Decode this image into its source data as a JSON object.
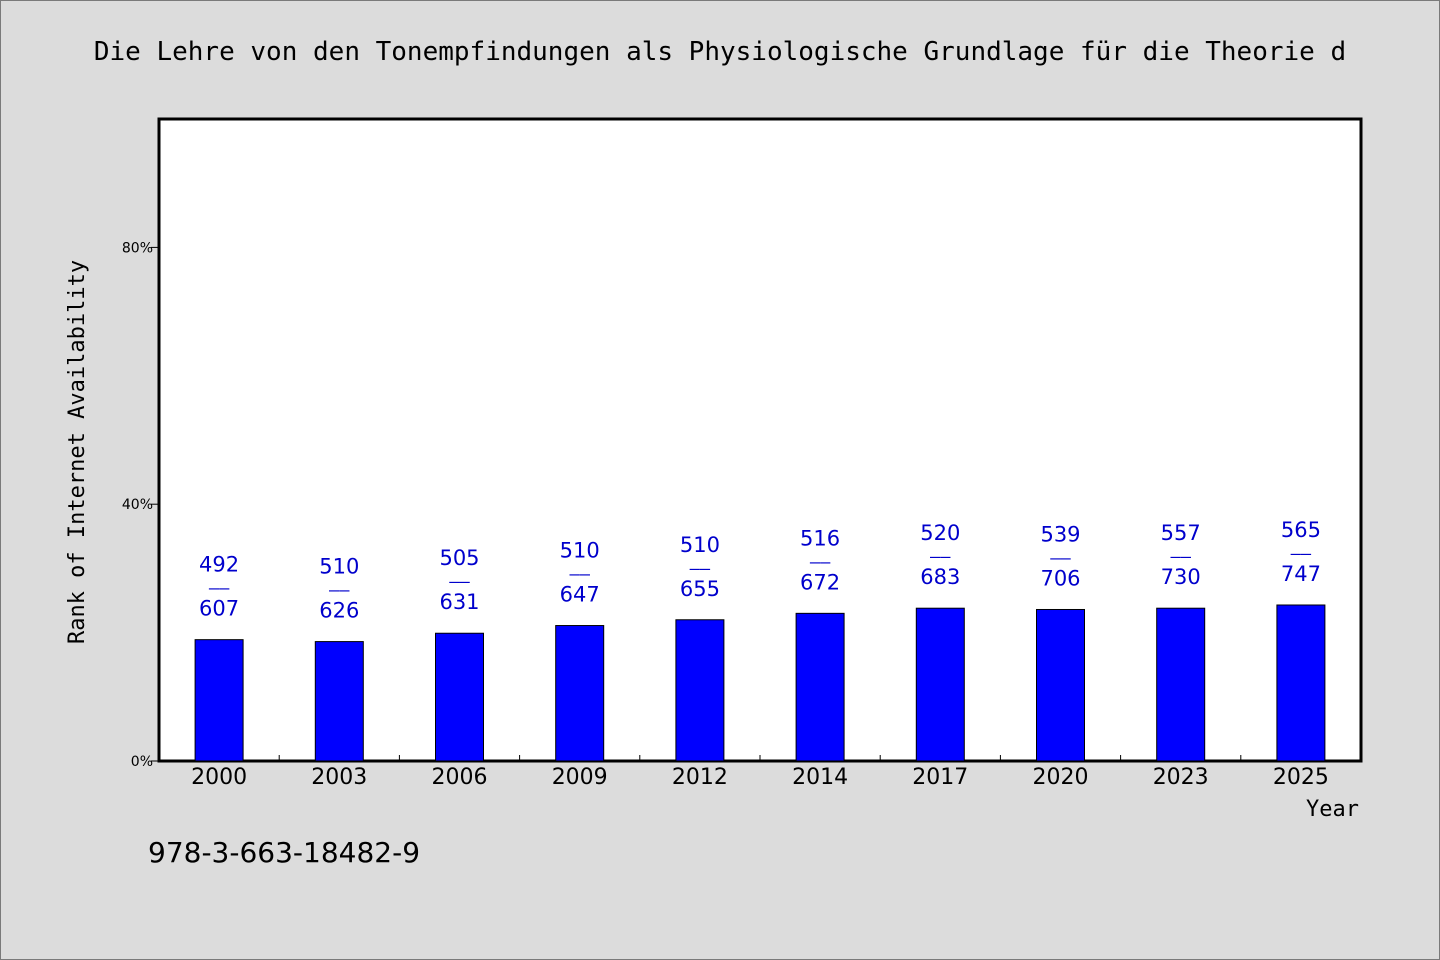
{
  "chart_data": {
    "type": "bar",
    "title": "Die Lehre von den Tonempfindungen als Physiologische Grundlage für die Theorie d",
    "xlabel": "Year",
    "ylabel": "Rank of Internet Availability",
    "ylim": [
      0,
      100
    ],
    "ytick_values": [
      0,
      40,
      80
    ],
    "ytick_labels": [
      "0%",
      "40%",
      "80%"
    ],
    "categories": [
      "2000",
      "2003",
      "2006",
      "2009",
      "2012",
      "2014",
      "2017",
      "2020",
      "2023",
      "2025"
    ],
    "values": [
      18.9,
      18.6,
      19.9,
      21.1,
      22.0,
      23.0,
      23.8,
      23.6,
      23.8,
      24.3
    ],
    "label_top": [
      "492",
      "510",
      "505",
      "510",
      "510",
      "516",
      "520",
      "539",
      "557",
      "565"
    ],
    "label_sep": "——",
    "label_bottom": [
      "607",
      "626",
      "631",
      "647",
      "655",
      "672",
      "683",
      "706",
      "730",
      "747"
    ],
    "bar_color": "#0000ff",
    "label_color": "#0000cc",
    "grid": false,
    "legend": "none"
  },
  "footer": {
    "isbn": "978-3-663-18482-9"
  }
}
